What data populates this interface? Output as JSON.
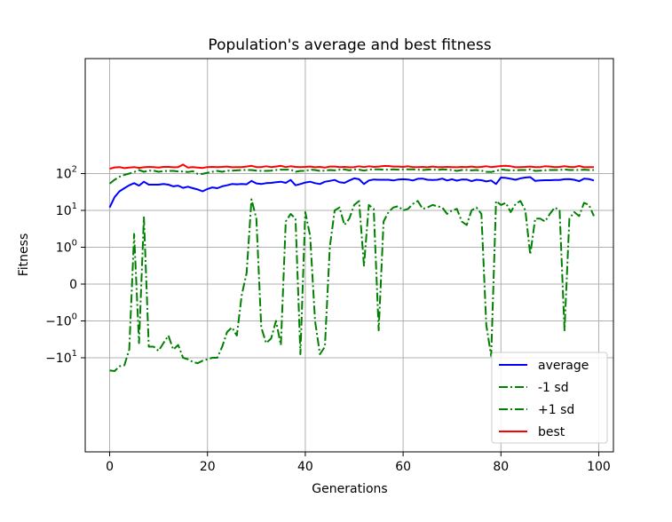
{
  "chart_data": {
    "type": "line",
    "title": "Population's average and best fitness",
    "xlabel": "Generations",
    "ylabel": "Fitness",
    "xlim": [
      -5,
      103
    ],
    "x_ticks": [
      0,
      20,
      40,
      60,
      80,
      100
    ],
    "y_scale": "symlog",
    "y_ticks": [
      {
        "value": 100,
        "base": "10",
        "exp": "2"
      },
      {
        "value": 10,
        "base": "10",
        "exp": "1"
      },
      {
        "value": 1,
        "base": "10",
        "exp": "0"
      },
      {
        "value": 0,
        "base": "0",
        "exp": ""
      },
      {
        "value": -1,
        "base": "−10",
        "exp": "0"
      },
      {
        "value": -10,
        "base": "−10",
        "exp": "1"
      }
    ],
    "grid": true,
    "legend_position": "lower-right",
    "colors": {
      "average": "#0000ff",
      "minus_sd": "#008000",
      "plus_sd": "#008000",
      "best": "#ff0000"
    },
    "x": [
      0,
      1,
      2,
      3,
      4,
      5,
      6,
      7,
      8,
      9,
      10,
      11,
      12,
      13,
      14,
      15,
      16,
      17,
      18,
      19,
      20,
      21,
      22,
      23,
      24,
      25,
      26,
      27,
      28,
      29,
      30,
      31,
      32,
      33,
      34,
      35,
      36,
      37,
      38,
      39,
      40,
      41,
      42,
      43,
      44,
      45,
      46,
      47,
      48,
      49,
      50,
      51,
      52,
      53,
      54,
      55,
      56,
      57,
      58,
      59,
      60,
      61,
      62,
      63,
      64,
      65,
      66,
      67,
      68,
      69,
      70,
      71,
      72,
      73,
      74,
      75,
      76,
      77,
      78,
      79,
      80,
      81,
      82,
      83,
      84,
      85,
      86,
      87,
      88,
      89,
      90,
      91,
      92,
      93,
      94,
      95,
      96,
      97,
      98,
      99
    ],
    "series": [
      {
        "name": "average",
        "style": "solid",
        "values": [
          12,
          23,
          33,
          40,
          48,
          55,
          47,
          60,
          50,
          50,
          50,
          52,
          50,
          45,
          47,
          41,
          44,
          40,
          37,
          33,
          38,
          42,
          40,
          45,
          48,
          52,
          51,
          52,
          51,
          63,
          54,
          52,
          55,
          56,
          58,
          60,
          56,
          67,
          48,
          52,
          57,
          60,
          55,
          52,
          60,
          63,
          67,
          58,
          56,
          65,
          74,
          70,
          52,
          65,
          69,
          68,
          68,
          68,
          65,
          69,
          70,
          69,
          65,
          72,
          73,
          68,
          67,
          68,
          73,
          65,
          70,
          64,
          69,
          69,
          62,
          68,
          66,
          61,
          65,
          52,
          78,
          76,
          72,
          68,
          74,
          78,
          80,
          63,
          65,
          66,
          66,
          67,
          67,
          70,
          71,
          68,
          62,
          73,
          71,
          65
        ]
      },
      {
        "name": "-1 sd",
        "style": "dashdot",
        "values": [
          -22,
          -23,
          -17,
          -16,
          -6,
          2.3,
          -4,
          6.5,
          -5,
          -5,
          -6.5,
          -4,
          -2.5,
          -6,
          -4.5,
          -10,
          -11,
          -13,
          -14,
          -12,
          -11,
          -10,
          -10,
          -5,
          -2,
          -1.5,
          -2.5,
          -0.3,
          0.3,
          20,
          6,
          -1.5,
          -4,
          -3,
          -1,
          -4.5,
          5,
          8,
          6,
          -8,
          9,
          2,
          -1,
          -8,
          -5,
          1,
          10,
          12,
          4,
          6,
          14,
          18,
          0.5,
          14,
          11,
          -1.8,
          5,
          9,
          12,
          13,
          10,
          11,
          15,
          18,
          11,
          12,
          14,
          13,
          12,
          8,
          10,
          11,
          5,
          4,
          10,
          12,
          8,
          -1.3,
          -9,
          18,
          14,
          16,
          9,
          15,
          18,
          10,
          0.8,
          6,
          6,
          5,
          8,
          12,
          10,
          -1.8,
          6,
          9,
          7,
          16,
          14,
          7
        ]
      },
      {
        "name": "+1 sd",
        "style": "dashdot",
        "values": [
          53,
          68,
          82,
          92,
          100,
          110,
          125,
          112,
          120,
          120,
          112,
          116,
          118,
          118,
          114,
          114,
          110,
          116,
          98,
          98,
          105,
          112,
          118,
          112,
          120,
          120,
          122,
          124,
          125,
          125,
          120,
          118,
          118,
          120,
          125,
          128,
          128,
          128,
          112,
          118,
          118,
          128,
          125,
          118,
          120,
          125,
          122,
          128,
          130,
          122,
          130,
          128,
          120,
          128,
          130,
          130,
          128,
          128,
          130,
          128,
          130,
          130,
          130,
          128,
          125,
          128,
          130,
          125,
          130,
          128,
          125,
          118,
          125,
          125,
          122,
          125,
          120,
          112,
          110,
          118,
          130,
          125,
          122,
          122,
          125,
          125,
          130,
          118,
          120,
          122,
          125,
          125,
          125,
          130,
          125,
          125,
          125,
          128,
          125,
          125
        ]
      },
      {
        "name": "best",
        "style": "solid",
        "values": [
          135,
          147,
          150,
          140,
          145,
          150,
          143,
          148,
          152,
          150,
          146,
          152,
          152,
          148,
          150,
          175,
          145,
          150,
          146,
          142,
          150,
          152,
          150,
          152,
          155,
          148,
          150,
          150,
          155,
          162,
          150,
          150,
          158,
          150,
          155,
          162,
          150,
          158,
          152,
          150,
          152,
          155,
          148,
          152,
          145,
          155,
          155,
          150,
          152,
          148,
          150,
          158,
          150,
          158,
          152,
          155,
          160,
          160,
          155,
          155,
          152,
          158,
          150,
          150,
          152,
          148,
          155,
          150,
          150,
          152,
          150,
          148,
          152,
          150,
          155,
          148,
          152,
          158,
          150,
          155,
          160,
          162,
          158,
          148,
          150,
          152,
          155,
          150,
          150,
          158,
          155,
          150,
          152,
          158,
          152,
          150,
          160,
          148,
          150,
          150
        ]
      }
    ]
  }
}
